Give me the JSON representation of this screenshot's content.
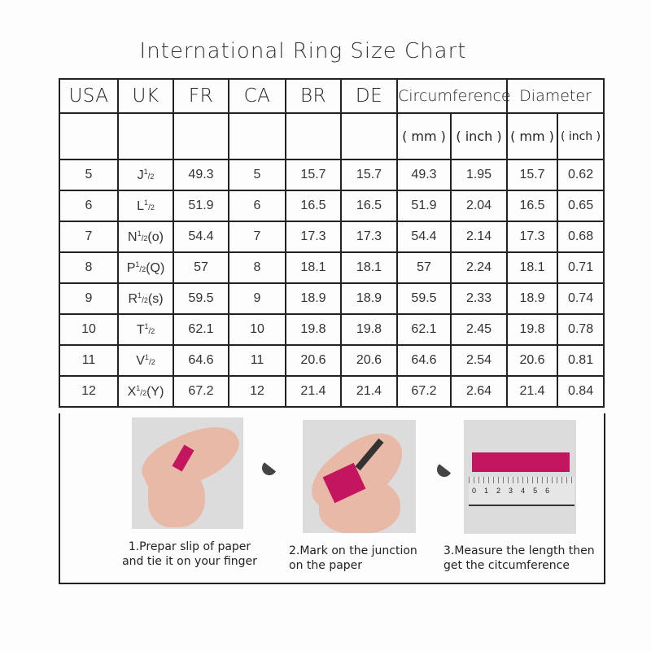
{
  "title": "International Ring Size Chart",
  "headers": [
    "USA",
    "UK",
    "FR",
    "CA",
    "BR",
    "DE",
    "Circumference",
    "Diameter"
  ],
  "subheaders": [
    "( mm )",
    "( inch )",
    "( mm )",
    "( inch )"
  ],
  "rows": [
    {
      "usa": "5",
      "uk": {
        "letter": "J",
        "num": "1",
        "den": "2",
        "suffix": ""
      },
      "fr": "49.3",
      "ca": "5",
      "br": "15.7",
      "de": "15.7",
      "circ_mm": "49.3",
      "circ_in": "1.95",
      "dia_mm": "15.7",
      "dia_in": "0.62"
    },
    {
      "usa": "6",
      "uk": {
        "letter": "L",
        "num": "1",
        "den": "2",
        "suffix": ""
      },
      "fr": "51.9",
      "ca": "6",
      "br": "16.5",
      "de": "16.5",
      "circ_mm": "51.9",
      "circ_in": "2.04",
      "dia_mm": "16.5",
      "dia_in": "0.65"
    },
    {
      "usa": "7",
      "uk": {
        "letter": "N",
        "num": "1",
        "den": "2",
        "suffix": "(o)"
      },
      "fr": "54.4",
      "ca": "7",
      "br": "17.3",
      "de": "17.3",
      "circ_mm": "54.4",
      "circ_in": "2.14",
      "dia_mm": "17.3",
      "dia_in": "0.68"
    },
    {
      "usa": "8",
      "uk": {
        "letter": "P",
        "num": "1",
        "den": "2",
        "suffix": "(Q)"
      },
      "fr": "57",
      "ca": "8",
      "br": "18.1",
      "de": "18.1",
      "circ_mm": "57",
      "circ_in": "2.24",
      "dia_mm": "18.1",
      "dia_in": "0.71"
    },
    {
      "usa": "9",
      "uk": {
        "letter": "R",
        "num": "1",
        "den": "2",
        "suffix": "(s)"
      },
      "fr": "59.5",
      "ca": "9",
      "br": "18.9",
      "de": "18.9",
      "circ_mm": "59.5",
      "circ_in": "2.33",
      "dia_mm": "18.9",
      "dia_in": "0.74"
    },
    {
      "usa": "10",
      "uk": {
        "letter": "T",
        "num": "1",
        "den": "2",
        "suffix": ""
      },
      "fr": "62.1",
      "ca": "10",
      "br": "19.8",
      "de": "19.8",
      "circ_mm": "62.1",
      "circ_in": "2.45",
      "dia_mm": "19.8",
      "dia_in": "0.78"
    },
    {
      "usa": "11",
      "uk": {
        "letter": "V",
        "num": "1",
        "den": "2",
        "suffix": ""
      },
      "fr": "64.6",
      "ca": "11",
      "br": "20.6",
      "de": "20.6",
      "circ_mm": "64.6",
      "circ_in": "2.54",
      "dia_mm": "20.6",
      "dia_in": "0.81"
    },
    {
      "usa": "12",
      "uk": {
        "letter": "X",
        "num": "1",
        "den": "2",
        "suffix": "(Y)"
      },
      "fr": "67.2",
      "ca": "12",
      "br": "21.4",
      "de": "21.4",
      "circ_mm": "67.2",
      "circ_in": "2.64",
      "dia_mm": "21.4",
      "dia_in": "0.84"
    }
  ],
  "steps": [
    {
      "line1": "1.Prepar slip of paper",
      "line2": "and tie it on your finger"
    },
    {
      "line1": "2.Mark on the junction",
      "line2": "on the paper"
    },
    {
      "line1": "3.Measure the length then",
      "line2": "get the citcumference"
    }
  ],
  "ruler_numbers": [
    "0",
    "1",
    "2",
    "3",
    "4",
    "5",
    "6"
  ],
  "colors": {
    "paper_strip": "#c4155f",
    "border": "#222222"
  }
}
